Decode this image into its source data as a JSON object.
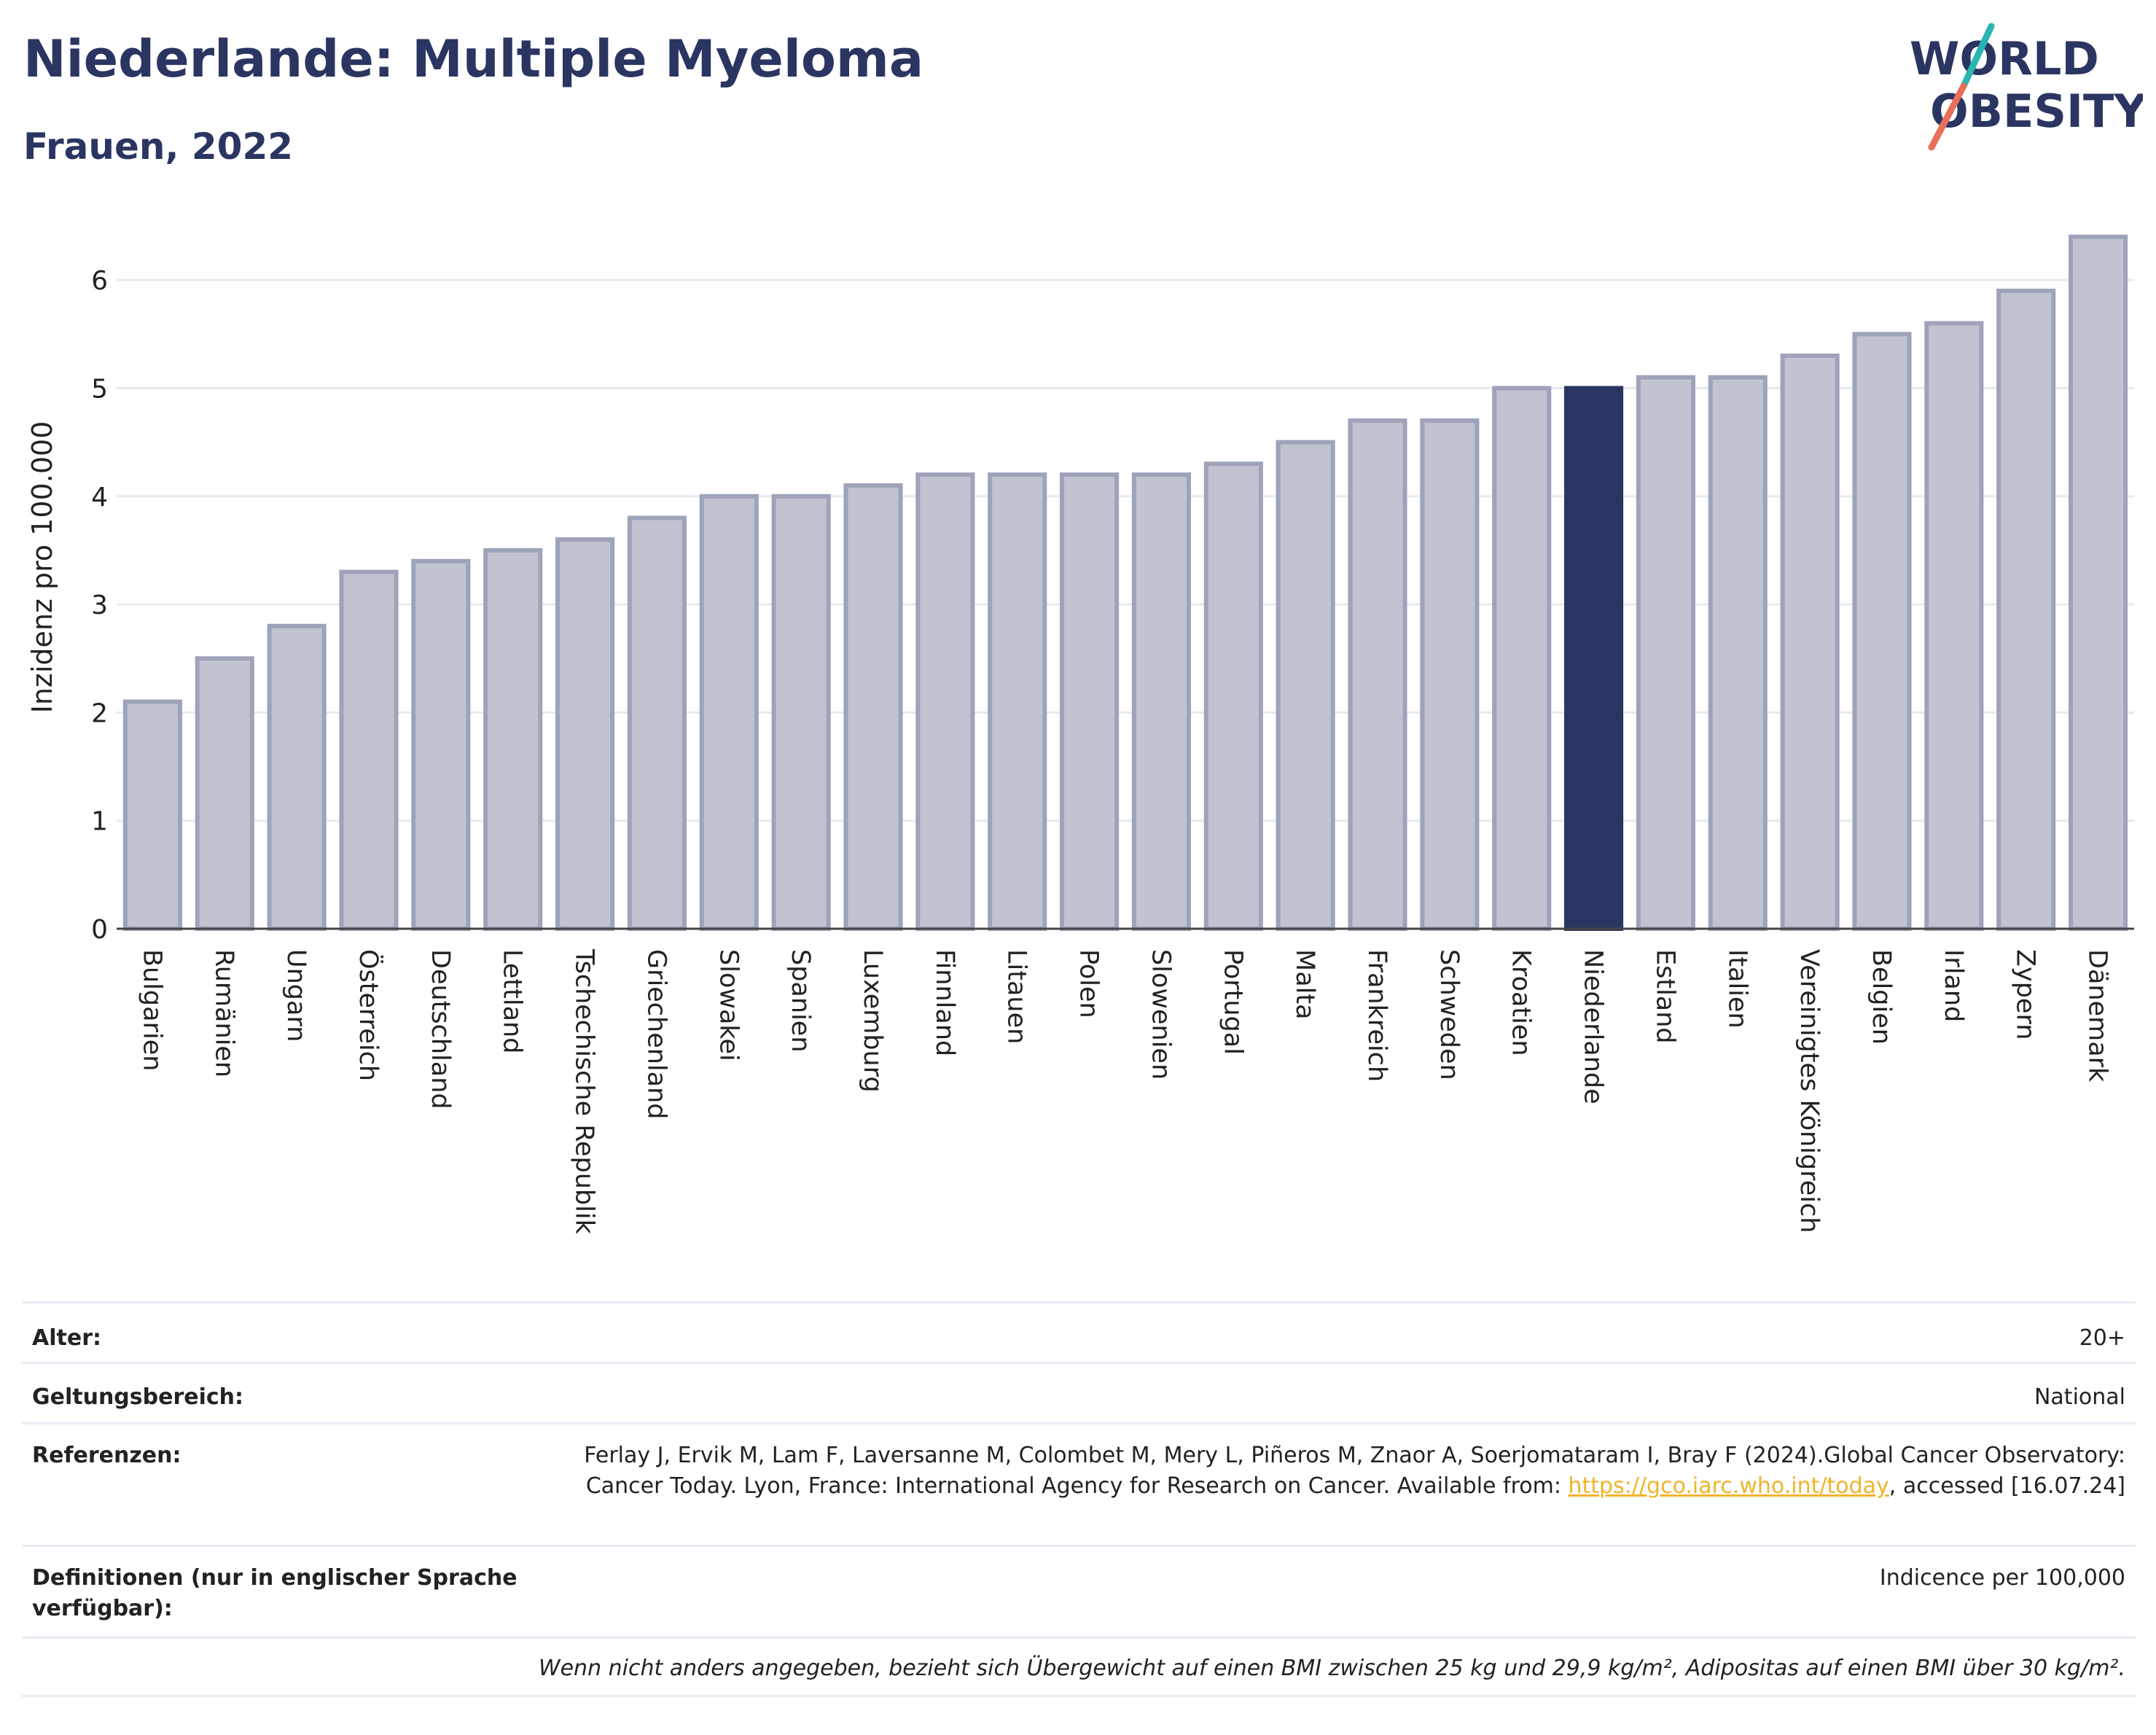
{
  "header": {
    "title": "Niederlande: Multiple Myeloma",
    "subtitle": "Frauen, 2022"
  },
  "logo": {
    "line1": "WORLD",
    "line2": "OBESITY",
    "accent_teal": "#2bb5b0",
    "accent_coral": "#e8705b"
  },
  "chart_data": {
    "type": "bar",
    "ylabel": "Inzidenz pro 100.000",
    "ylim": [
      0,
      6.5
    ],
    "yticks": [
      0,
      1,
      2,
      3,
      4,
      5,
      6
    ],
    "grid": true,
    "highlight": "Niederlande",
    "categories": [
      "Bulgarien",
      "Rumänien",
      "Ungarn",
      "Österreich",
      "Deutschland",
      "Lettland",
      "Tschechische Republik",
      "Griechenland",
      "Slowakei",
      "Spanien",
      "Luxemburg",
      "Finnland",
      "Litauen",
      "Polen",
      "Slowenien",
      "Portugal",
      "Malta",
      "Frankreich",
      "Schweden",
      "Kroatien",
      "Niederlande",
      "Estland",
      "Italien",
      "Vereinigtes Königreich",
      "Belgien",
      "Irland",
      "Zypern",
      "Dänemark"
    ],
    "values": [
      2.1,
      2.5,
      2.8,
      3.3,
      3.4,
      3.5,
      3.6,
      3.8,
      4.0,
      4.0,
      4.1,
      4.2,
      4.2,
      4.2,
      4.2,
      4.3,
      4.5,
      4.7,
      4.7,
      5.0,
      5.0,
      5.1,
      5.1,
      5.3,
      5.5,
      5.6,
      5.9,
      6.4
    ],
    "colors": {
      "bar": "#c0c3d0",
      "bar_border": "#9ea3ba",
      "highlight": "#2b3562",
      "grid": "#e8eaf0",
      "axis": "#444444"
    }
  },
  "info": {
    "age_label": "Alter:",
    "age_value": "20+",
    "scope_label": "Geltungsbereich:",
    "scope_value": "National",
    "ref_label": "Referenzen:",
    "ref_text_1": "Ferlay J, Ervik M, Lam F, Laversanne M, Colombet M, Mery L, Piñeros M, Znaor A, Soerjomataram I, Bray F (2024).Global Cancer Observatory: Cancer Today. Lyon, France: International Agency for Research on Cancer. Available from: ",
    "ref_link": "https://gco.iarc.who.int/today",
    "ref_text_2": ", accessed [16.07.24]",
    "def_label": "Definitionen (nur in englischer Sprache verfügbar):",
    "def_value": "Indicence per 100,000",
    "note": "Wenn nicht anders angegeben, bezieht sich Übergewicht auf einen BMI zwischen 25 kg und 29,9 kg/m², Adipositas auf einen BMI über 30 kg/m²."
  }
}
